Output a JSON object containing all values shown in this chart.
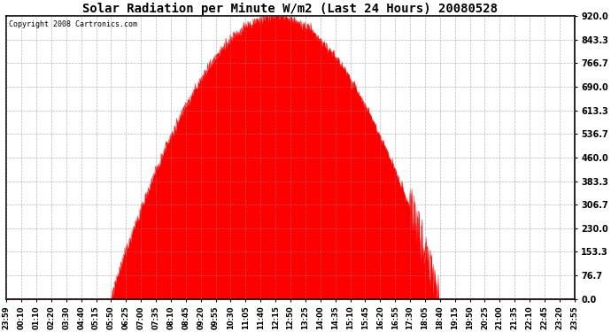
{
  "title": "Solar Radiation per Minute W/m2 (Last 24 Hours) 20080528",
  "copyright": "Copyright 2008 Cartronics.com",
  "background_color": "#ffffff",
  "plot_bg_color": "#ffffff",
  "fill_color": "#ff0000",
  "line_color": "#ff0000",
  "grid_color": "#888888",
  "ymin": 0.0,
  "ymax": 920.0,
  "yticks": [
    0.0,
    76.7,
    153.3,
    230.0,
    306.7,
    383.3,
    460.0,
    536.7,
    613.3,
    690.0,
    766.7,
    843.3,
    920.0
  ],
  "x_labels": [
    "23:59",
    "00:10",
    "01:10",
    "02:20",
    "03:30",
    "04:40",
    "05:15",
    "05:50",
    "06:25",
    "07:00",
    "07:35",
    "08:10",
    "08:45",
    "09:20",
    "09:55",
    "10:30",
    "11:05",
    "11:40",
    "12:15",
    "12:50",
    "13:25",
    "14:00",
    "14:35",
    "15:10",
    "15:45",
    "16:20",
    "16:55",
    "17:30",
    "18:05",
    "18:40",
    "19:15",
    "19:50",
    "20:25",
    "21:00",
    "21:35",
    "22:10",
    "22:45",
    "23:20",
    "23:55"
  ],
  "border_color": "#000000",
  "title_fontsize": 10,
  "copyright_fontsize": 6,
  "xlabel_fontsize": 6,
  "ylabel_fontsize": 7
}
